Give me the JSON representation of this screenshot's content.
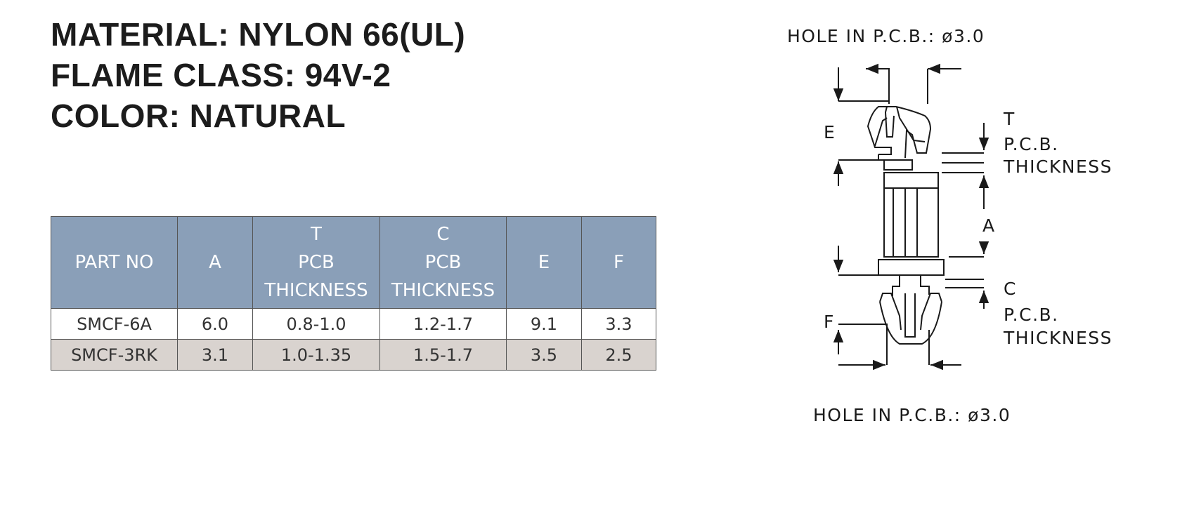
{
  "spec": {
    "material": "MATERIAL: NYLON 66(UL)",
    "flame_class": "FLAME CLASS: 94V-2",
    "color": "COLOR: NATURAL"
  },
  "table": {
    "headers": [
      [
        "PART NO"
      ],
      [
        "A"
      ],
      [
        "T",
        "PCB",
        "THICKNESS"
      ],
      [
        "C",
        "PCB",
        "THICKNESS"
      ],
      [
        "E"
      ],
      [
        "F"
      ]
    ],
    "rows": [
      [
        "SMCF-6A",
        "6.0",
        "0.8-1.0",
        "1.2-1.7",
        "9.1",
        "3.3"
      ],
      [
        "SMCF-3RK",
        "3.1",
        "1.0-1.35",
        "1.5-1.7",
        "3.5",
        "2.5"
      ]
    ],
    "header_color": "#8a9fb8",
    "alt_row_color": "#d9d3cf"
  },
  "drawing": {
    "hole_top": "HOLE IN P.C.B.: ø3.0",
    "hole_bottom": "HOLE IN P.C.B.: ø3.0",
    "label_e": "E",
    "label_f": "F",
    "label_a": "A",
    "label_t": "T",
    "label_c": "C",
    "pcb_top": "P.C.B.",
    "thickness_top": "THICKNESS",
    "pcb_bottom": "P.C.B.",
    "thickness_bottom": "THICKNESS"
  }
}
